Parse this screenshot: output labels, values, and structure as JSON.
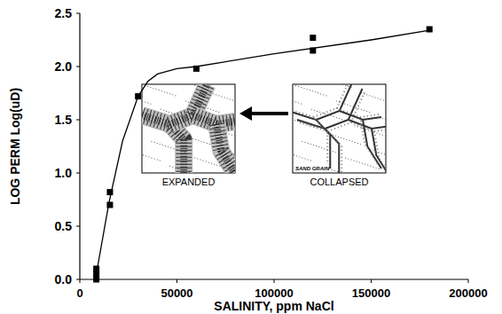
{
  "chart_data": {
    "type": "scatter",
    "x_label": "SALINITY, ppm NaCl",
    "y_label": "LOG PERM Log(uD)",
    "series": [
      {
        "type": "scatter",
        "marker": "square",
        "color": "#000000",
        "x": [
          8500,
          8500,
          8500,
          15500,
          15500,
          30000,
          60000,
          120000,
          120000,
          180000
        ],
        "values": [
          0.1,
          0.05,
          0.0,
          0.82,
          0.7,
          1.72,
          1.98,
          2.27,
          2.15,
          2.35
        ]
      },
      {
        "type": "line",
        "line_style": "solid",
        "color": "#000000",
        "x": [
          8000,
          15000,
          22000,
          30000,
          35000,
          40000,
          50000,
          60000,
          100000,
          150000,
          180000
        ],
        "values": [
          0.0,
          0.72,
          1.3,
          1.72,
          1.86,
          1.93,
          1.98,
          2.0,
          2.12,
          2.25,
          2.34
        ]
      }
    ],
    "annotations": [
      {
        "text": "EXPANDED"
      },
      {
        "text": "COLLAPSED"
      },
      {
        "text": "SAND GRAIN"
      }
    ],
    "xlim": [
      0,
      200000
    ],
    "xticks": [
      0,
      50000,
      100000,
      150000,
      200000
    ],
    "ylim": [
      0,
      2.5
    ],
    "yticks": [
      {
        "value": 0,
        "label": "0.0"
      },
      {
        "value": 0.5,
        "label": "0.5"
      },
      {
        "value": 1,
        "label": "1.0"
      },
      {
        "value": 1.5,
        "label": "1.5"
      },
      {
        "value": 2,
        "label": "2.0"
      },
      {
        "value": 2.5,
        "label": "2.5"
      }
    ],
    "grid": false
  }
}
